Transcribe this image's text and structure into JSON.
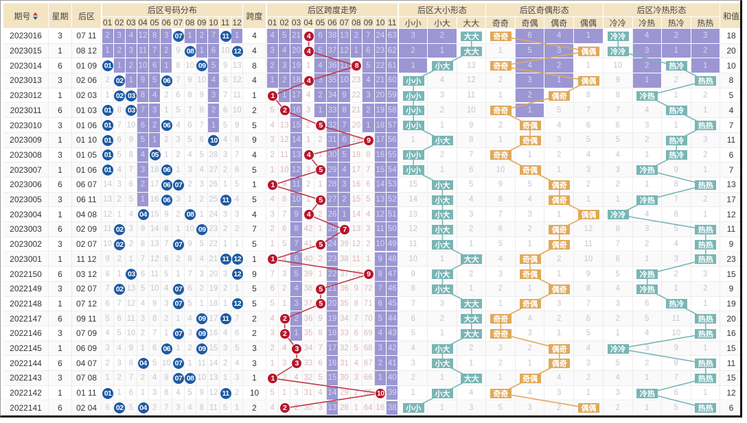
{
  "colors": {
    "header_bg": "#f3e4c4",
    "omission_layer": "#9c97d3",
    "number_ball": "#1e5aa3",
    "span_ball": "#b5172b",
    "span_line": "#c0394a",
    "size_box": "#7ab5b5",
    "oddeven_box": "#e0a95a",
    "hotcold_box": "#7ab5b5"
  },
  "header": {
    "issue": "期号",
    "sort_icon": "sort-up-down-icon",
    "weekday": "星期",
    "back": "后区",
    "dist_title": "后区号码分布",
    "dist_cols": [
      "01",
      "02",
      "03",
      "04",
      "05",
      "06",
      "07",
      "08",
      "09",
      "10",
      "11",
      "12"
    ],
    "span": "跨度",
    "trend_title": "后区跨度走势",
    "trend_cols": [
      "01",
      "02",
      "03",
      "04",
      "05",
      "06",
      "07",
      "08",
      "09",
      "10",
      "11"
    ],
    "size_title": "后区大小形态",
    "size_cols": [
      "小小",
      "小大",
      "大大"
    ],
    "oe_title": "后区奇偶形态",
    "oe_cols": [
      "奇奇",
      "奇偶",
      "偶奇",
      "偶偶"
    ],
    "hc_title": "后区冷热形态",
    "hc_cols": [
      "冷冷",
      "冷热",
      "热冷",
      "热热"
    ],
    "sum": "和值"
  },
  "rows": [
    {
      "issue": "2023016",
      "weekday": "3",
      "back": "07 11",
      "dist": [
        2,
        3,
        4,
        12,
        8,
        3,
        "07",
        1,
        2,
        7,
        "11",
        1
      ],
      "span": "4",
      "trend": [
        4,
        5,
        21,
        "4",
        6,
        38,
        13,
        2,
        7,
        24,
        63
      ],
      "size": [
        3,
        2,
        "大大"
      ],
      "oe": [
        "奇奇",
        6,
        4,
        1
      ],
      "hc": [
        "冷冷",
        4,
        2,
        3
      ],
      "sum": "18"
    },
    {
      "issue": "2023015",
      "weekday": "1",
      "back": "08 12",
      "dist": [
        1,
        2,
        3,
        11,
        7,
        2,
        9,
        "08",
        1,
        6,
        10,
        "12"
      ],
      "span": "4",
      "trend": [
        3,
        4,
        20,
        "4",
        5,
        37,
        12,
        1,
        6,
        23,
        62
      ],
      "size": [
        2,
        1,
        "大大"
      ],
      "oe": [
        1,
        5,
        3,
        "偶偶"
      ],
      "hc": [
        "冷冷",
        3,
        1,
        2
      ],
      "sum": "20"
    },
    {
      "issue": "2023014",
      "weekday": "6",
      "back": "01 09",
      "dist": [
        "01",
        1,
        2,
        10,
        6,
        1,
        8,
        10,
        "09",
        5,
        9,
        13
      ],
      "span": "8",
      "trend": [
        2,
        3,
        19,
        1,
        4,
        36,
        11,
        "8",
        5,
        22,
        61
      ],
      "size": [
        1,
        "小大",
        13
      ],
      "oe": [
        "奇奇",
        4,
        2,
        1
      ],
      "hc": [
        10,
        2,
        "热冷",
        1
      ],
      "sum": "10"
    },
    {
      "issue": "2023013",
      "weekday": "3",
      "back": "02 06",
      "dist": [
        2,
        "02",
        1,
        9,
        5,
        "06",
        7,
        9,
        10,
        4,
        8,
        12
      ],
      "span": "4",
      "trend": [
        1,
        2,
        18,
        "4",
        3,
        35,
        10,
        23,
        4,
        21,
        60
      ],
      "size": [
        "小小",
        4,
        12
      ],
      "oe": [
        2,
        3,
        1,
        "偶偶"
      ],
      "hc": [
        9,
        1,
        2,
        "热热"
      ],
      "sum": "8"
    },
    {
      "issue": "2023012",
      "weekday": "1",
      "back": "02 03",
      "dist": [
        1,
        "02",
        "03",
        8,
        4,
        2,
        6,
        8,
        9,
        3,
        7,
        11
      ],
      "span": "1",
      "trend": [
        "1",
        1,
        17,
        4,
        2,
        34,
        9,
        22,
        3,
        20,
        59
      ],
      "size": [
        "小小",
        3,
        11
      ],
      "oe": [
        1,
        2,
        "偶奇",
        8
      ],
      "hc": [
        8,
        "冷热",
        1,
        2
      ],
      "sum": "5"
    },
    {
      "issue": "2023011",
      "weekday": "6",
      "back": "01 03",
      "dist": [
        "01",
        8,
        "03",
        7,
        3,
        1,
        5,
        7,
        8,
        2,
        6,
        10
      ],
      "span": "2",
      "trend": [
        5,
        "2",
        16,
        3,
        1,
        33,
        8,
        21,
        2,
        19,
        58
      ],
      "size": [
        "小小",
        2,
        10
      ],
      "oe": [
        "奇奇",
        1,
        5,
        7
      ],
      "hc": [
        7,
        4,
        "热冷",
        1
      ],
      "sum": "4"
    },
    {
      "issue": "2023010",
      "weekday": "3",
      "back": "01 06",
      "dist": [
        "01",
        7,
        10,
        6,
        2,
        "06",
        4,
        6,
        7,
        1,
        5,
        9
      ],
      "span": "5",
      "trend": [
        4,
        13,
        15,
        2,
        "5",
        32,
        7,
        20,
        1,
        18,
        57
      ],
      "size": [
        "小小",
        1,
        9
      ],
      "oe": [
        2,
        "奇偶",
        4,
        6
      ],
      "hc": [
        6,
        3,
        1,
        "热热"
      ],
      "sum": "7"
    },
    {
      "issue": "2023009",
      "weekday": "1",
      "back": "01 10",
      "dist": [
        "01",
        6,
        9,
        5,
        1,
        2,
        3,
        5,
        6,
        "10",
        4,
        8
      ],
      "span": "9",
      "trend": [
        3,
        12,
        14,
        1,
        2,
        31,
        6,
        19,
        "9",
        17,
        56
      ],
      "size": [
        1,
        "小大",
        8
      ],
      "oe": [
        1,
        "奇偶",
        3,
        5
      ],
      "hc": [
        5,
        2,
        "热冷",
        3
      ],
      "sum": "11"
    },
    {
      "issue": "2023008",
      "weekday": "3",
      "back": "01 05",
      "dist": [
        "01",
        5,
        8,
        4,
        "05",
        1,
        2,
        4,
        5,
        28,
        3,
        7
      ],
      "span": "4",
      "trend": [
        2,
        11,
        13,
        "4",
        1,
        30,
        5,
        18,
        8,
        16,
        55
      ],
      "size": [
        "小小",
        2,
        7
      ],
      "oe": [
        "奇奇",
        1,
        2,
        4
      ],
      "hc": [
        4,
        1,
        "热冷",
        2
      ],
      "sum": "6"
    },
    {
      "issue": "2023007",
      "weekday": "1",
      "back": "01 06",
      "dist": [
        "01",
        4,
        7,
        3,
        18,
        "06",
        1,
        3,
        4,
        27,
        2,
        6
      ],
      "span": "5",
      "trend": [
        1,
        10,
        12,
        3,
        "5",
        29,
        4,
        17,
        7,
        15,
        54
      ],
      "size": [
        "小小",
        1,
        6
      ],
      "oe": [
        10,
        "奇偶",
        1,
        3
      ],
      "hc": [
        3,
        "冷热",
        9,
        1
      ],
      "sum": "7"
    },
    {
      "issue": "2023006",
      "weekday": "6",
      "back": "06 07",
      "dist": [
        14,
        3,
        6,
        2,
        17,
        "06",
        "07",
        2,
        3,
        26,
        1,
        5
      ],
      "span": "1",
      "trend": [
        "1",
        9,
        11,
        2,
        1,
        28,
        3,
        16,
        6,
        14,
        53
      ],
      "size": [
        15,
        "小大",
        5
      ],
      "oe": [
        9,
        5,
        "偶奇",
        2
      ],
      "hc": [
        2,
        1,
        8,
        "热热"
      ],
      "sum": "13"
    },
    {
      "issue": "2023005",
      "weekday": "3",
      "back": "06 11",
      "dist": [
        13,
        2,
        5,
        1,
        16,
        "06",
        3,
        1,
        2,
        25,
        "11",
        4
      ],
      "span": "5",
      "trend": [
        4,
        8,
        10,
        1,
        "5",
        27,
        2,
        15,
        5,
        13,
        52
      ],
      "size": [
        14,
        "小大",
        4
      ],
      "oe": [
        8,
        4,
        "偶奇",
        1
      ],
      "hc": [
        1,
        "冷热",
        7,
        2
      ],
      "sum": "17"
    },
    {
      "issue": "2023004",
      "weekday": "1",
      "back": "04 08",
      "dist": [
        12,
        1,
        4,
        "04",
        15,
        9,
        2,
        "08",
        1,
        24,
        3,
        3
      ],
      "span": "4",
      "trend": [
        3,
        7,
        9,
        "4",
        2,
        26,
        1,
        14,
        4,
        12,
        51
      ],
      "size": [
        13,
        "小大",
        3
      ],
      "oe": [
        7,
        3,
        1,
        "偶偶"
      ],
      "hc": [
        "冷冷",
        4,
        6,
        1
      ],
      "sum": "12"
    },
    {
      "issue": "2023003",
      "weekday": "6",
      "back": "02 09",
      "dist": [
        11,
        "02",
        3,
        9,
        14,
        8,
        1,
        10,
        "09",
        23,
        2,
        2
      ],
      "span": "7",
      "trend": [
        2,
        6,
        8,
        42,
        1,
        25,
        "7",
        13,
        3,
        11,
        50
      ],
      "size": [
        12,
        "小大",
        2
      ],
      "oe": [
        6,
        2,
        "偶奇",
        12
      ],
      "hc": [
        8,
        3,
        5,
        "热热"
      ],
      "sum": "11"
    },
    {
      "issue": "2023002",
      "weekday": "3",
      "back": "02 07",
      "dist": [
        10,
        "02",
        2,
        8,
        13,
        7,
        "07",
        9,
        5,
        22,
        1,
        1
      ],
      "span": "5",
      "trend": [
        1,
        5,
        7,
        41,
        "5",
        24,
        39,
        12,
        2,
        10,
        49
      ],
      "size": [
        11,
        "小大",
        1
      ],
      "oe": [
        5,
        1,
        "偶奇",
        11
      ],
      "hc": [
        7,
        2,
        4,
        "热热"
      ],
      "sum": "9"
    },
    {
      "issue": "2023001",
      "weekday": "1",
      "back": "11 12",
      "dist": [
        9,
        2,
        1,
        7,
        12,
        6,
        2,
        8,
        4,
        21,
        "11",
        "12"
      ],
      "span": "1",
      "trend": [
        "1",
        4,
        6,
        40,
        2,
        23,
        38,
        11,
        1,
        9,
        48
      ],
      "size": [
        10,
        1,
        "大大"
      ],
      "oe": [
        4,
        "奇偶",
        2,
        10
      ],
      "hc": [
        6,
        1,
        3,
        "热热"
      ],
      "sum": "23"
    },
    {
      "issue": "2022150",
      "weekday": "6",
      "back": "03 12",
      "dist": [
        8,
        1,
        "03",
        6,
        11,
        5,
        1,
        7,
        3,
        20,
        3,
        "12"
      ],
      "span": "9",
      "trend": [
        7,
        3,
        5,
        39,
        1,
        22,
        37,
        10,
        "9",
        8,
        47
      ],
      "size": [
        9,
        "小大",
        2
      ],
      "oe": [
        3,
        "奇偶",
        1,
        9
      ],
      "hc": [
        5,
        "冷热",
        2,
        3
      ],
      "sum": "15"
    },
    {
      "issue": "2022149",
      "weekday": "3",
      "back": "02 07",
      "dist": [
        7,
        "02",
        13,
        5,
        10,
        4,
        "07",
        6,
        2,
        19,
        2,
        1
      ],
      "span": "5",
      "trend": [
        6,
        2,
        4,
        38,
        "5",
        21,
        36,
        9,
        72,
        7,
        46
      ],
      "size": [
        8,
        "小大",
        1
      ],
      "oe": [
        2,
        1,
        "偶奇",
        8
      ],
      "hc": [
        4,
        "冷热",
        1,
        2
      ],
      "sum": "9"
    },
    {
      "issue": "2022148",
      "weekday": "1",
      "back": "07 12",
      "dist": [
        6,
        7,
        12,
        4,
        9,
        3,
        "07",
        5,
        1,
        18,
        1,
        "12"
      ],
      "span": "5",
      "trend": [
        5,
        1,
        3,
        37,
        "5",
        20,
        35,
        8,
        71,
        6,
        45
      ],
      "size": [
        7,
        3,
        "大大"
      ],
      "oe": [
        1,
        "奇偶",
        3,
        7
      ],
      "hc": [
        3,
        6,
        "热冷",
        1
      ],
      "sum": "19"
    },
    {
      "issue": "2022147",
      "weekday": "6",
      "back": "09 11",
      "dist": [
        5,
        6,
        11,
        3,
        8,
        2,
        1,
        4,
        "09",
        17,
        "11",
        7
      ],
      "span": "2",
      "trend": [
        4,
        "2",
        2,
        36,
        9,
        19,
        34,
        7,
        70,
        5,
        44
      ],
      "size": [
        6,
        2,
        "大大"
      ],
      "oe": [
        "奇奇",
        4,
        2,
        6
      ],
      "hc": [
        2,
        5,
        11,
        "热热"
      ],
      "sum": "20"
    },
    {
      "issue": "2022146",
      "weekday": "3",
      "back": "07 09",
      "dist": [
        4,
        5,
        10,
        2,
        7,
        1,
        "07",
        3,
        "09",
        16,
        4,
        6
      ],
      "span": "2",
      "trend": [
        3,
        "2",
        1,
        35,
        8,
        18,
        33,
        6,
        69,
        4,
        43
      ],
      "size": [
        5,
        1,
        "大大"
      ],
      "oe": [
        "奇奇",
        3,
        1,
        5
      ],
      "hc": [
        1,
        4,
        10,
        "热热"
      ],
      "sum": "16"
    },
    {
      "issue": "2022145",
      "weekday": "1",
      "back": "06 09",
      "dist": [
        3,
        4,
        9,
        1,
        6,
        "06",
        1,
        2,
        "09",
        15,
        3,
        5
      ],
      "span": "3",
      "trend": [
        2,
        4,
        "3",
        34,
        7,
        17,
        32,
        5,
        68,
        3,
        42
      ],
      "size": [
        4,
        "小大",
        2
      ],
      "oe": [
        3,
        2,
        "偶奇",
        4
      ],
      "hc": [
        "冷冷",
        3,
        9,
        1
      ],
      "sum": "15"
    },
    {
      "issue": "2022144",
      "weekday": "6",
      "back": "04 07",
      "dist": [
        2,
        3,
        8,
        "04",
        5,
        10,
        "07",
        1,
        11,
        14,
        2,
        4
      ],
      "span": "3",
      "trend": [
        1,
        3,
        "3",
        33,
        6,
        16,
        31,
        4,
        67,
        2,
        41
      ],
      "size": [
        3,
        "小大",
        1
      ],
      "oe": [
        2,
        1,
        "偶奇",
        3
      ],
      "hc": [
        5,
        2,
        8,
        "热热"
      ],
      "sum": "11"
    },
    {
      "issue": "2022143",
      "weekday": "3",
      "back": "07 08",
      "dist": [
        1,
        2,
        7,
        2,
        4,
        9,
        "07",
        "08",
        10,
        13,
        1,
        3
      ],
      "span": "1",
      "trend": [
        "1",
        2,
        4,
        32,
        5,
        15,
        30,
        3,
        66,
        1,
        40
      ],
      "size": [
        2,
        1,
        "大大"
      ],
      "oe": [
        1,
        "奇偶",
        4,
        2
      ],
      "hc": [
        4,
        1,
        7,
        "热热"
      ],
      "sum": "15"
    },
    {
      "issue": "2022142",
      "weekday": "1",
      "back": "01 11",
      "dist": [
        "01",
        1,
        6,
        1,
        3,
        8,
        4,
        5,
        9,
        12,
        "11",
        2
      ],
      "span": "10",
      "trend": [
        5,
        1,
        3,
        31,
        4,
        14,
        29,
        2,
        65,
        "10",
        39
      ],
      "size": [
        1,
        "小大",
        4
      ],
      "oe": [
        "奇奇",
        4,
        3,
        1
      ],
      "hc": [
        3,
        "冷热",
        6,
        1
      ],
      "sum": "12"
    },
    {
      "issue": "2022141",
      "weekday": "6",
      "back": "02 04",
      "dist": [
        6,
        "02",
        5,
        "04",
        2,
        7,
        3,
        4,
        8,
        11,
        5,
        1
      ],
      "span": "2",
      "trend": [
        4,
        "2",
        2,
        30,
        3,
        13,
        28,
        1,
        64,
        16,
        38
      ],
      "size": [
        "小小",
        1,
        3
      ],
      "oe": [
        5,
        3,
        2,
        "偶偶"
      ],
      "hc": [
        2,
        1,
        5,
        "热热"
      ],
      "sum": "6"
    }
  ]
}
